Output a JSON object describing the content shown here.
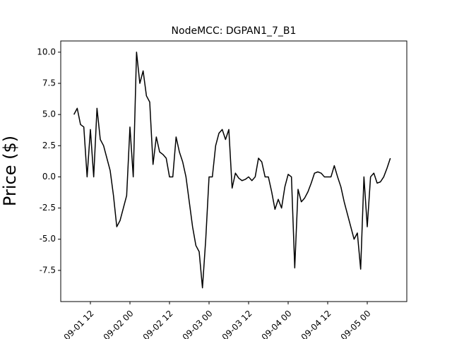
{
  "chart_data": {
    "type": "line",
    "title": "NodeMCC: DGPAN1_7_B1",
    "y_label": "Price ($)",
    "color": "#000000",
    "x": [
      "09-01 07",
      "09-01 08",
      "09-01 09",
      "09-01 10",
      "09-01 11",
      "09-01 12",
      "09-01 13",
      "09-01 14",
      "09-01 15",
      "09-01 16",
      "09-01 17",
      "09-01 18",
      "09-01 19",
      "09-01 20",
      "09-01 21",
      "09-01 22",
      "09-01 23",
      "09-02 00",
      "09-02 01",
      "09-02 02",
      "09-02 03",
      "09-02 04",
      "09-02 05",
      "09-02 06",
      "09-02 07",
      "09-02 08",
      "09-02 09",
      "09-02 10",
      "09-02 11",
      "09-02 12",
      "09-02 13",
      "09-02 14",
      "09-02 15",
      "09-02 16",
      "09-02 17",
      "09-02 18",
      "09-02 19",
      "09-02 20",
      "09-02 21",
      "09-02 22",
      "09-02 23",
      "09-03 00",
      "09-03 01",
      "09-03 02",
      "09-03 03",
      "09-03 04",
      "09-03 05",
      "09-03 06",
      "09-03 07",
      "09-03 08",
      "09-03 09",
      "09-03 10",
      "09-03 11",
      "09-03 12",
      "09-03 13",
      "09-03 14",
      "09-03 15",
      "09-03 16",
      "09-03 17",
      "09-03 18",
      "09-03 19",
      "09-03 20",
      "09-03 21",
      "09-03 22",
      "09-03 23",
      "09-04 00",
      "09-04 01",
      "09-04 02",
      "09-04 03",
      "09-04 04",
      "09-04 05",
      "09-04 06",
      "09-04 07",
      "09-04 08",
      "09-04 09",
      "09-04 10",
      "09-04 11",
      "09-04 12",
      "09-04 13",
      "09-04 14",
      "09-04 15",
      "09-04 16",
      "09-04 17",
      "09-04 18",
      "09-04 19",
      "09-04 20",
      "09-04 21",
      "09-04 22",
      "09-04 23",
      "09-05 00",
      "09-05 01",
      "09-05 02",
      "09-05 03",
      "09-05 04",
      "09-05 05",
      "09-05 06",
      "09-05 07"
    ],
    "values": [
      5.0,
      5.5,
      4.2,
      4.0,
      0,
      3.8,
      0,
      5.5,
      3.0,
      2.5,
      1.5,
      0.5,
      -1.5,
      -4.0,
      -3.5,
      -2.5,
      -1.5,
      4.0,
      0,
      10.0,
      7.5,
      8.5,
      6.5,
      6.0,
      1.0,
      3.2,
      2.0,
      1.8,
      1.5,
      0,
      0,
      3.2,
      2.0,
      1.2,
      0,
      -2.0,
      -4.0,
      -5.5,
      -6.0,
      -8.9,
      -5.0,
      0,
      0,
      2.5,
      3.5,
      3.8,
      3.0,
      3.8,
      -0.9,
      0.3,
      -0.1,
      -0.3,
      -0.2,
      0,
      -0.3,
      0,
      1.5,
      1.2,
      0,
      0,
      -1.2,
      -2.6,
      -1.8,
      -2.5,
      -0.8,
      0.2,
      0,
      -7.3,
      -1.0,
      -2.0,
      -1.7,
      -1.2,
      -0.5,
      0.3,
      0.4,
      0.3,
      0,
      0,
      0,
      0.9,
      0,
      -0.8,
      -2.0,
      -3.0,
      -4.0,
      -5.0,
      -4.5,
      -7.4,
      0,
      -4.0,
      0,
      0.3,
      -0.5,
      -0.4,
      0,
      0.7,
      1.5
    ],
    "xlim": [
      "09-01 03",
      "09-05 12"
    ],
    "xticks": [
      "09-01 12",
      "09-02 00",
      "09-02 12",
      "09-03 00",
      "09-03 12",
      "09-04 00",
      "09-04 12",
      "09-05 00"
    ],
    "ylim": [
      -10,
      10.9
    ],
    "yticks": [
      {
        "value": -7.5,
        "label": "-7.5"
      },
      {
        "value": -5,
        "label": "-5.0"
      },
      {
        "value": -2.5,
        "label": "-2.5"
      },
      {
        "value": 0,
        "label": "0.0"
      },
      {
        "value": 2.5,
        "label": "2.5"
      },
      {
        "value": 5,
        "label": "5.0"
      },
      {
        "value": 7.5,
        "label": "7.5"
      },
      {
        "value": 10,
        "label": "10.0"
      }
    ]
  }
}
